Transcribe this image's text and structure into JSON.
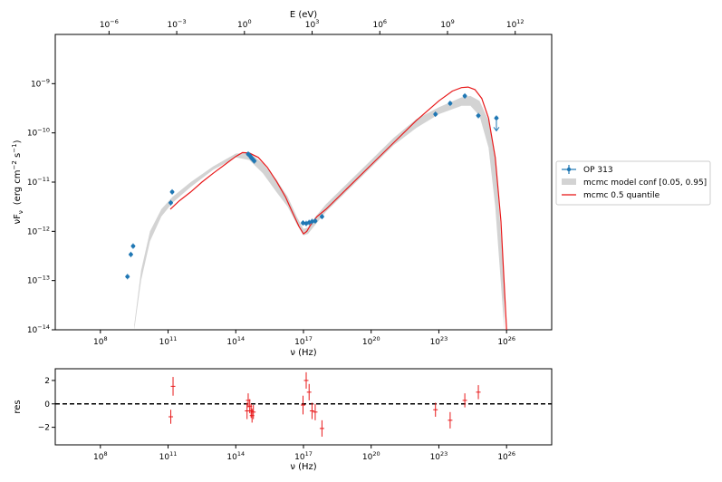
{
  "chart_data": [
    {
      "type": "scatter",
      "title": "",
      "xlabel": "ν  (Hz)",
      "ylabel": "νF",
      "ylabel_sub": "ν",
      "ylabel_units": "(erg cm",
      "ylabel_units_exp": "−2",
      "ylabel_units_tail": " s",
      "ylabel_units_exp2": "−1",
      "ylabel_units_close": ")",
      "top_axis_label": "E (eV)",
      "xscale": "log",
      "yscale": "log",
      "xlim": [
        1000000.0,
        1e+28
      ],
      "ylim": [
        1e-14,
        1e-08
      ],
      "x_ticks": [
        {
          "v": 8,
          "base": "10",
          "exp": "8"
        },
        {
          "v": 11,
          "base": "10",
          "exp": "11"
        },
        {
          "v": 14,
          "base": "10",
          "exp": "14"
        },
        {
          "v": 17,
          "base": "10",
          "exp": "17"
        },
        {
          "v": 20,
          "base": "10",
          "exp": "20"
        },
        {
          "v": 23,
          "base": "10",
          "exp": "23"
        },
        {
          "v": 26,
          "base": "10",
          "exp": "26"
        }
      ],
      "top_ticks_eV": [
        {
          "v": -6,
          "base": "10",
          "exp": "−6"
        },
        {
          "v": -3,
          "base": "10",
          "exp": "−3"
        },
        {
          "v": 0,
          "base": "10",
          "exp": "0"
        },
        {
          "v": 3,
          "base": "10",
          "exp": "3"
        },
        {
          "v": 6,
          "base": "10",
          "exp": "6"
        },
        {
          "v": 9,
          "base": "10",
          "exp": "9"
        },
        {
          "v": 12,
          "base": "10",
          "exp": "12"
        }
      ],
      "y_ticks": [
        {
          "v": -14,
          "base": "10",
          "exp": "−14"
        },
        {
          "v": -13,
          "base": "10",
          "exp": "−13"
        },
        {
          "v": -12,
          "base": "10",
          "exp": "−12"
        },
        {
          "v": -11,
          "base": "10",
          "exp": "−11"
        },
        {
          "v": -10,
          "base": "10",
          "exp": "−10"
        },
        {
          "v": -9,
          "base": "10",
          "exp": "−9"
        }
      ],
      "legend": {
        "placement": "right outside",
        "entries": [
          "OP 313",
          "mcmc model conf [0.05, 0.95]",
          "mcmc 0.5 quantile"
        ]
      },
      "colors": {
        "data": "#1f77b4",
        "band": "#d3d3d3",
        "model": "#e8191a"
      },
      "series": [
        {
          "name": "OP 313",
          "kind": "points",
          "x": [
            9.2,
            9.35,
            9.45,
            11.12,
            11.18,
            14.55,
            14.62,
            14.68,
            14.72,
            14.78,
            14.82,
            16.98,
            17.12,
            17.25,
            17.38,
            17.52,
            17.82,
            22.85,
            23.5,
            24.15,
            24.75,
            25.55
          ],
          "y": [
            -12.92,
            -12.47,
            -12.3,
            -11.42,
            -11.2,
            -10.43,
            -10.46,
            -10.5,
            -10.52,
            -10.55,
            -10.57,
            -11.83,
            -11.84,
            -11.82,
            -11.8,
            -11.79,
            -11.7,
            -9.62,
            -9.4,
            -9.25,
            -9.65,
            -9.7
          ],
          "upper_limits": [
            false,
            false,
            false,
            false,
            false,
            false,
            false,
            false,
            false,
            false,
            false,
            false,
            false,
            false,
            false,
            false,
            false,
            false,
            false,
            false,
            false,
            true
          ]
        },
        {
          "name": "mcmc model conf [0.05, 0.95]",
          "kind": "band",
          "x": [
            9.5,
            9.8,
            10.2,
            10.7,
            11.2,
            12.0,
            13.0,
            14.0,
            14.6,
            15.2,
            15.8,
            16.3,
            16.7,
            17.0,
            17.2,
            17.5,
            18.0,
            19.0,
            20.0,
            21.0,
            22.0,
            23.0,
            24.0,
            24.4,
            24.8,
            25.2,
            25.5,
            25.9
          ],
          "upper": [
            -13.9,
            -12.8,
            -12.0,
            -11.55,
            -11.3,
            -11.0,
            -10.68,
            -10.42,
            -10.4,
            -10.62,
            -10.95,
            -11.3,
            -11.7,
            -11.95,
            -11.92,
            -11.72,
            -11.45,
            -11.0,
            -10.55,
            -10.1,
            -9.72,
            -9.48,
            -9.28,
            -9.25,
            -9.35,
            -9.75,
            -10.5,
            -13.0
          ],
          "lower": [
            -14.0,
            -13.0,
            -12.2,
            -11.7,
            -11.42,
            -11.1,
            -10.75,
            -10.5,
            -10.55,
            -10.82,
            -11.2,
            -11.5,
            -11.85,
            -12.08,
            -12.05,
            -11.88,
            -11.6,
            -11.15,
            -10.7,
            -10.25,
            -9.9,
            -9.62,
            -9.45,
            -9.45,
            -9.65,
            -10.3,
            -11.5,
            -14.0
          ]
        },
        {
          "name": "mcmc 0.5 quantile",
          "kind": "line",
          "x": [
            11.1,
            11.5,
            12.0,
            12.5,
            13.0,
            13.5,
            14.0,
            14.3,
            14.6,
            15.0,
            15.4,
            15.8,
            16.2,
            16.5,
            16.8,
            17.0,
            17.15,
            17.3,
            17.6,
            18.0,
            19.0,
            20.0,
            21.0,
            22.0,
            23.0,
            23.6,
            24.0,
            24.3,
            24.6,
            24.9,
            25.2,
            25.5,
            25.75,
            26.0
          ],
          "y": [
            -11.55,
            -11.38,
            -11.2,
            -11.0,
            -10.82,
            -10.65,
            -10.48,
            -10.4,
            -10.41,
            -10.5,
            -10.7,
            -10.98,
            -11.3,
            -11.6,
            -11.9,
            -12.05,
            -12.0,
            -11.88,
            -11.7,
            -11.55,
            -11.1,
            -10.65,
            -10.2,
            -9.75,
            -9.35,
            -9.15,
            -9.08,
            -9.07,
            -9.12,
            -9.3,
            -9.7,
            -10.5,
            -11.8,
            -14.0
          ]
        }
      ]
    },
    {
      "type": "scatter",
      "title": "",
      "xlabel": "ν  (Hz)",
      "ylabel": "res",
      "xscale": "log",
      "xlim": [
        1000000.0,
        1e+28
      ],
      "ylim": [
        -3.5,
        3.0
      ],
      "y_ticks": [
        {
          "v": -2,
          "label": "−2"
        },
        {
          "v": 0,
          "label": "0"
        },
        {
          "v": 2,
          "label": "2"
        }
      ],
      "x_ticks": [
        {
          "v": 8,
          "base": "10",
          "exp": "8"
        },
        {
          "v": 11,
          "base": "10",
          "exp": "11"
        },
        {
          "v": 14,
          "base": "10",
          "exp": "14"
        },
        {
          "v": 17,
          "base": "10",
          "exp": "17"
        },
        {
          "v": 20,
          "base": "10",
          "exp": "20"
        },
        {
          "v": 23,
          "base": "10",
          "exp": "23"
        },
        {
          "v": 26,
          "base": "10",
          "exp": "26"
        }
      ],
      "zero_line": 0,
      "series": [
        {
          "name": "",
          "x": [
            11.12,
            11.22,
            14.5,
            14.55,
            14.62,
            14.68,
            14.72,
            14.78,
            16.98,
            17.12,
            17.25,
            17.38,
            17.52,
            17.82,
            22.85,
            23.5,
            24.15,
            24.75
          ],
          "y": [
            -1.1,
            1.5,
            -0.6,
            0.3,
            -0.2,
            -0.6,
            -1.0,
            -0.7,
            -0.1,
            2.0,
            1.0,
            -0.6,
            -0.7,
            -2.1,
            -0.5,
            -1.4,
            0.3,
            1.0
          ],
          "yerr": [
            0.6,
            0.8,
            0.7,
            0.6,
            0.6,
            0.6,
            0.6,
            0.6,
            0.8,
            0.7,
            0.7,
            0.7,
            0.7,
            0.7,
            0.6,
            0.7,
            0.6,
            0.6
          ]
        }
      ]
    }
  ]
}
